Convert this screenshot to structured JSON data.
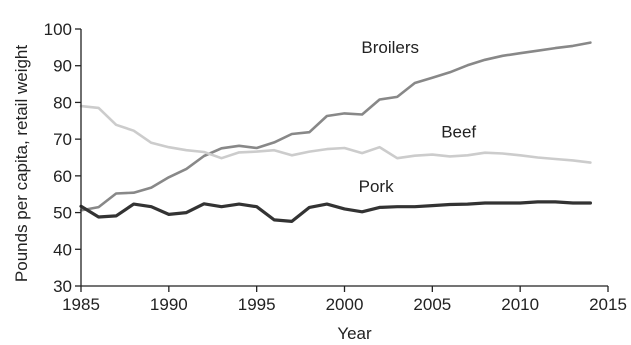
{
  "chart_data": {
    "type": "line",
    "title": "",
    "xlabel": "Year",
    "ylabel": "Pounds per capita, retail weight",
    "xlim": [
      1985,
      2015
    ],
    "ylim": [
      30,
      100
    ],
    "x_ticks": [
      1985,
      1990,
      1995,
      2000,
      2005,
      2010,
      2015
    ],
    "y_ticks": [
      30,
      40,
      50,
      60,
      70,
      80,
      90,
      100
    ],
    "grid": false,
    "legend": "inline labels",
    "x": [
      1985,
      1986,
      1987,
      1988,
      1989,
      1990,
      1991,
      1992,
      1993,
      1994,
      1995,
      1996,
      1997,
      1998,
      1999,
      2000,
      2001,
      2002,
      2003,
      2004,
      2005,
      2006,
      2007,
      2008,
      2009,
      2010,
      2011,
      2012,
      2013,
      2014
    ],
    "series": [
      {
        "name": "Broilers",
        "color": "#888888",
        "values": [
          50.6,
          51.5,
          55.2,
          55.4,
          56.8,
          59.6,
          61.9,
          65.4,
          67.5,
          68.2,
          67.6,
          69.1,
          71.4,
          71.9,
          76.3,
          77.0,
          76.7,
          80.8,
          81.5,
          85.3,
          86.7,
          88.2,
          90.1,
          91.6,
          92.7,
          93.4,
          94.1,
          94.8,
          95.4,
          96.3
        ]
      },
      {
        "name": "Beef",
        "color": "#cccccc",
        "values": [
          79.0,
          78.5,
          73.9,
          72.3,
          69.0,
          67.8,
          67.0,
          66.5,
          64.8,
          66.4,
          66.6,
          67.0,
          65.6,
          66.6,
          67.3,
          67.6,
          66.2,
          67.8,
          64.8,
          65.5,
          65.8,
          65.3,
          65.6,
          66.3,
          66.1,
          65.6,
          65.0,
          64.6,
          64.2,
          63.6
        ]
      },
      {
        "name": "Pork",
        "color": "#333333",
        "values": [
          51.7,
          48.8,
          49.1,
          52.3,
          51.6,
          49.5,
          50.0,
          52.4,
          51.6,
          52.3,
          51.6,
          48.0,
          47.6,
          51.4,
          52.3,
          51.0,
          50.2,
          51.4,
          51.6,
          51.6,
          51.9,
          52.2,
          52.3,
          52.6,
          52.6,
          52.6,
          52.9,
          52.9,
          52.6,
          52.6
        ]
      }
    ]
  }
}
